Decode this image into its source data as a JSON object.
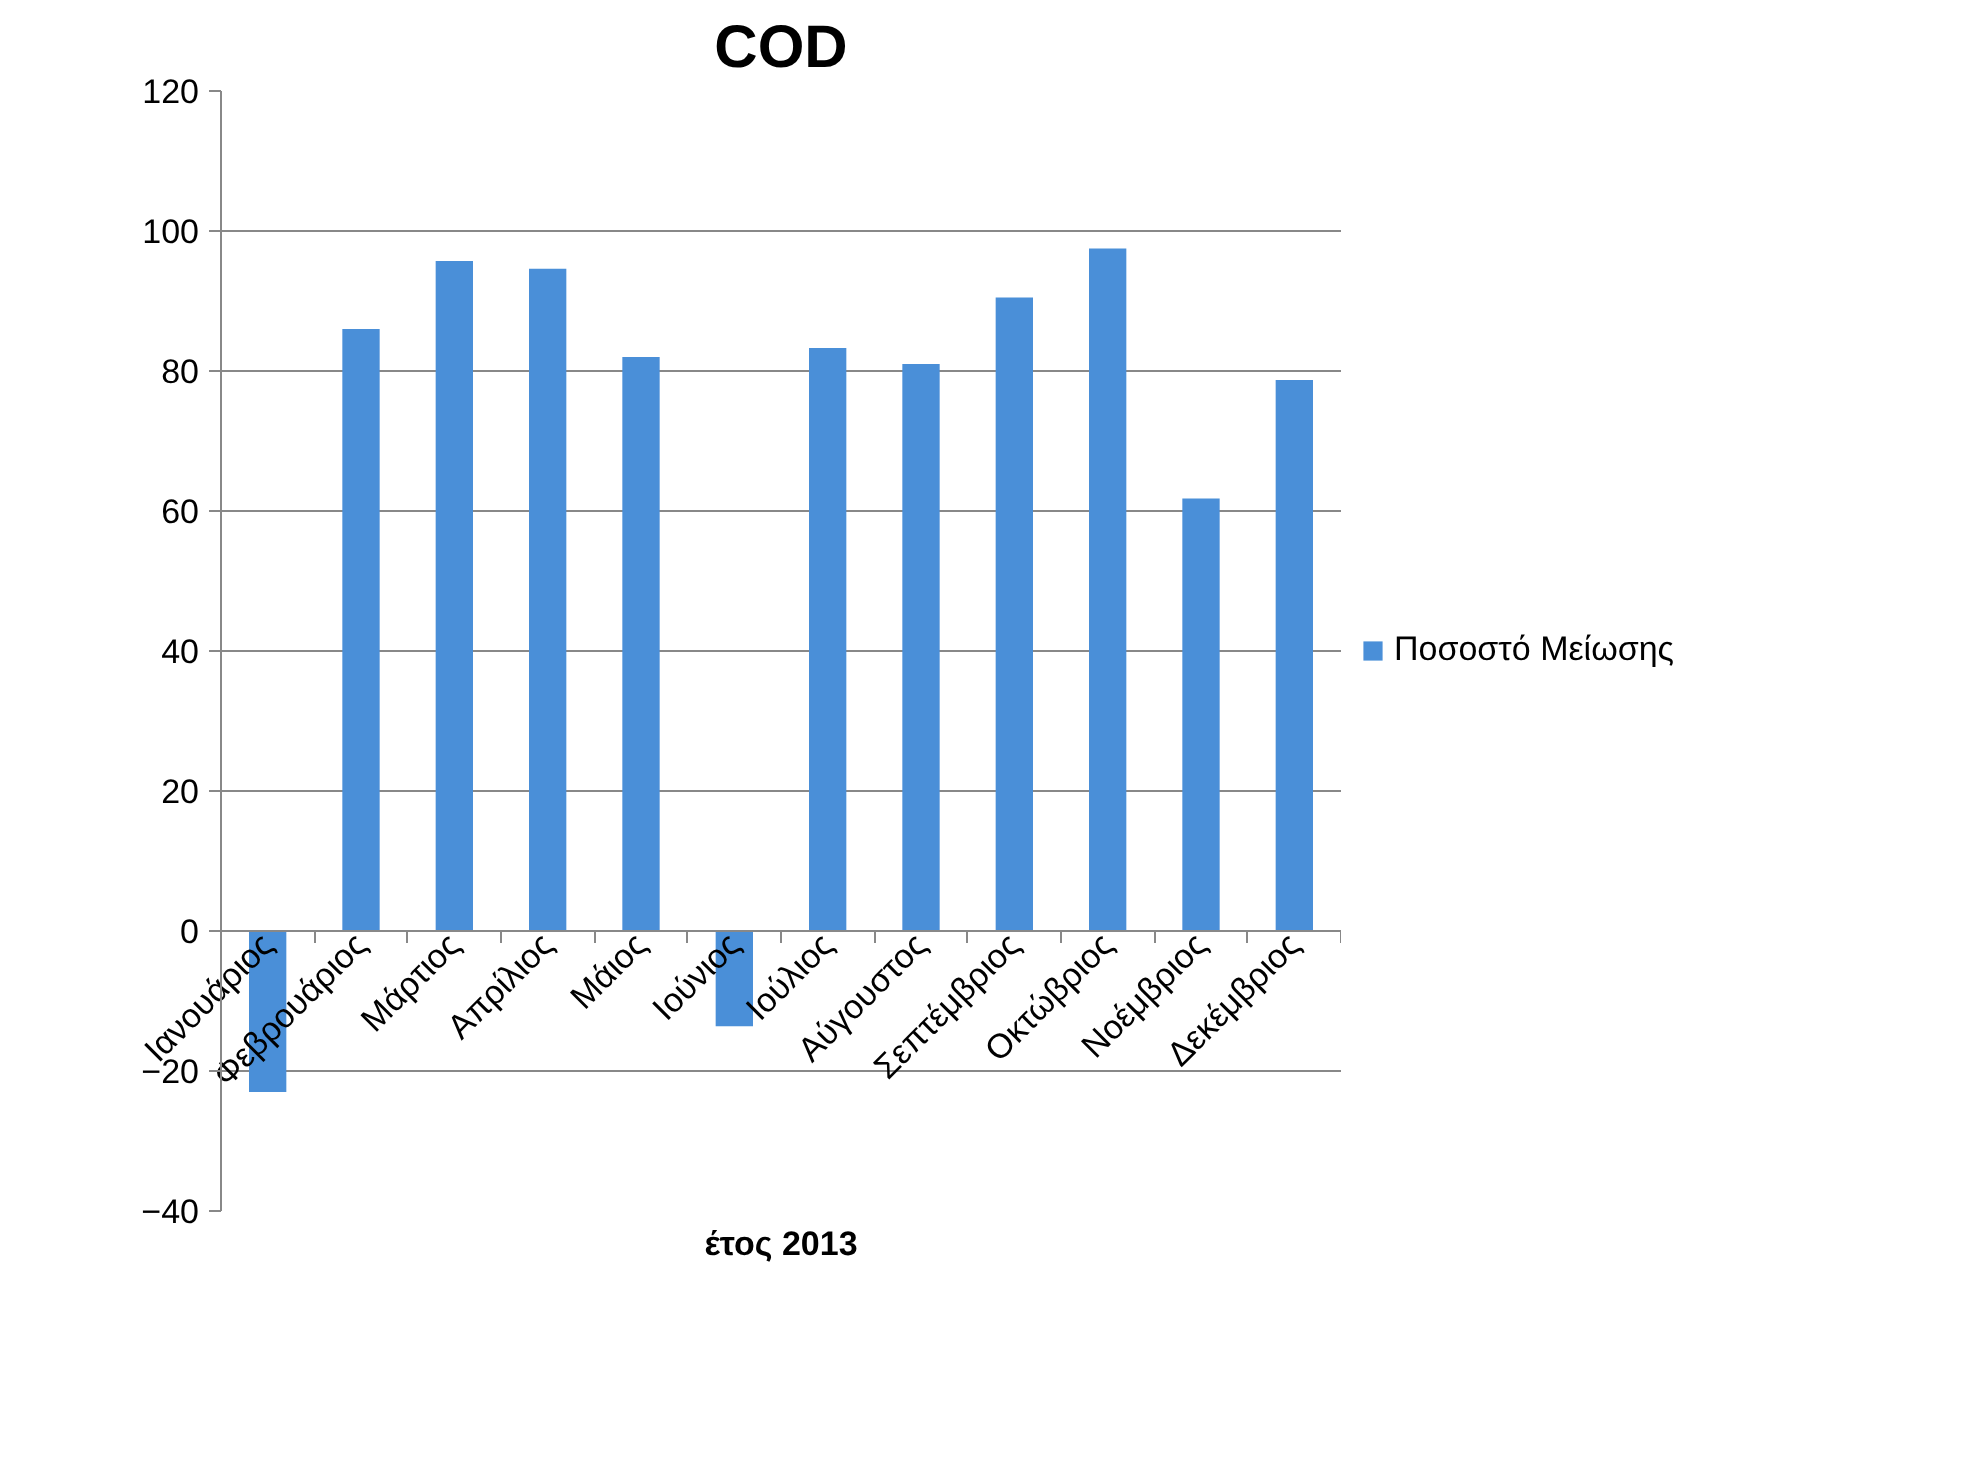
{
  "chart_data": {
    "type": "bar",
    "title": "COD",
    "xlabel": "έτος 2013",
    "categories": [
      "Ιανουάριος",
      "Φεβρουάριος",
      "Μάρτιος",
      "Απρίλιος",
      "Μάιος",
      "Ιούνιος",
      "Ιούλιος",
      "Αύγουστος",
      "Σεπτέμβριος",
      "Οκτώβριος",
      "Νοέμβριος",
      "Δεκέμβριος"
    ],
    "series": [
      {
        "name": "Ποσοστό Μείωσης",
        "color": "#4a8fd8",
        "values": [
          -23,
          86,
          95.7,
          94.6,
          82,
          -13.6,
          83.3,
          81,
          90.5,
          97.5,
          61.8,
          78.7
        ]
      }
    ],
    "ylim": [
      -40,
      120
    ],
    "yticks": [
      -40,
      -20,
      0,
      20,
      40,
      60,
      80,
      100,
      120
    ],
    "grid": "y",
    "legend": "right"
  }
}
